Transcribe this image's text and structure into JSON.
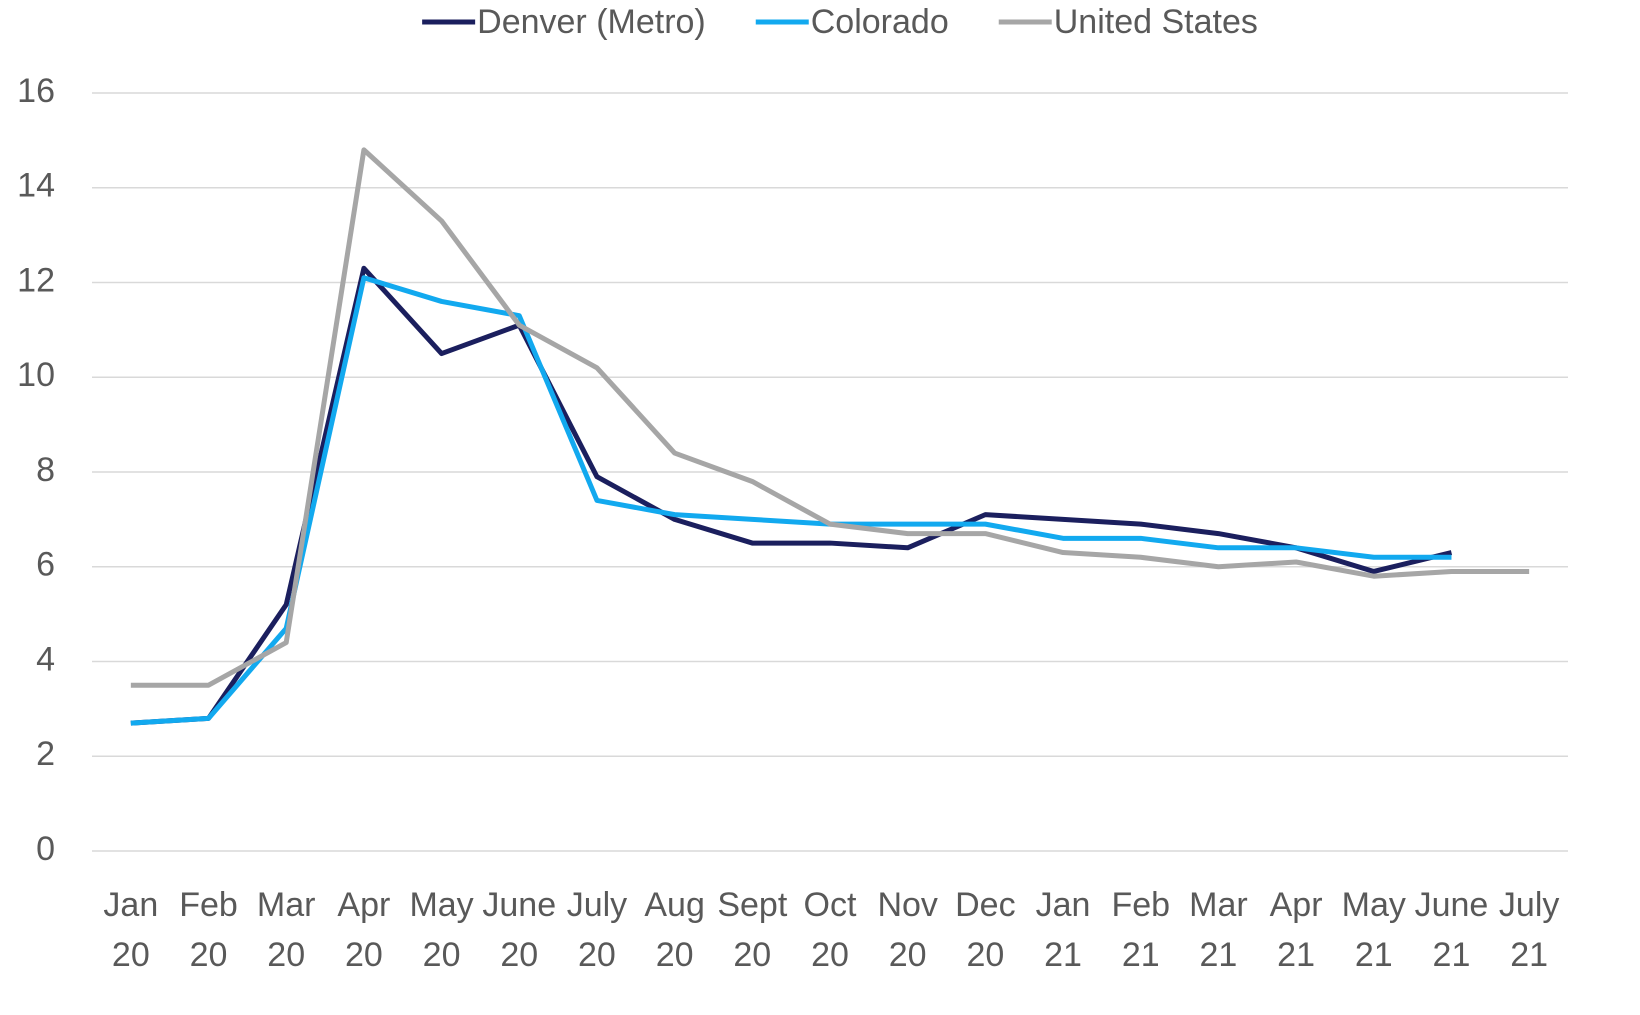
{
  "chart_data": {
    "type": "line",
    "categories": [
      "Jan\n20",
      "Feb\n20",
      "Mar\n20",
      "Apr\n20",
      "May\n20",
      "June\n20",
      "July\n20",
      "Aug\n20",
      "Sept\n20",
      "Oct\n20",
      "Nov\n20",
      "Dec\n20",
      "Jan\n21",
      "Feb\n21",
      "Mar\n21",
      "Apr\n21",
      "May\n21",
      "June\n21",
      "July\n21"
    ],
    "series": [
      {
        "name": "Denver (Metro)",
        "color": "#1b1f5e",
        "values": [
          2.7,
          2.8,
          5.2,
          12.3,
          10.5,
          11.1,
          7.9,
          7.0,
          6.5,
          6.5,
          6.4,
          7.1,
          7.0,
          6.9,
          6.7,
          6.4,
          5.9,
          6.3,
          null
        ]
      },
      {
        "name": "Colorado",
        "color": "#12a9ef",
        "values": [
          2.7,
          2.8,
          4.7,
          12.1,
          11.6,
          11.3,
          7.4,
          7.1,
          7.0,
          6.9,
          6.9,
          6.9,
          6.6,
          6.6,
          6.4,
          6.4,
          6.2,
          6.2,
          null
        ]
      },
      {
        "name": "United States",
        "color": "#a6a6a6",
        "values": [
          3.5,
          3.5,
          4.4,
          14.8,
          13.3,
          11.1,
          10.2,
          8.4,
          7.8,
          6.9,
          6.7,
          6.7,
          6.3,
          6.2,
          6.0,
          6.1,
          5.8,
          5.9,
          5.9
        ]
      }
    ],
    "ylim": [
      0,
      16
    ],
    "yticks": [
      0,
      2,
      4,
      6,
      8,
      10,
      12,
      14,
      16
    ],
    "grid": true,
    "legend": "top"
  }
}
